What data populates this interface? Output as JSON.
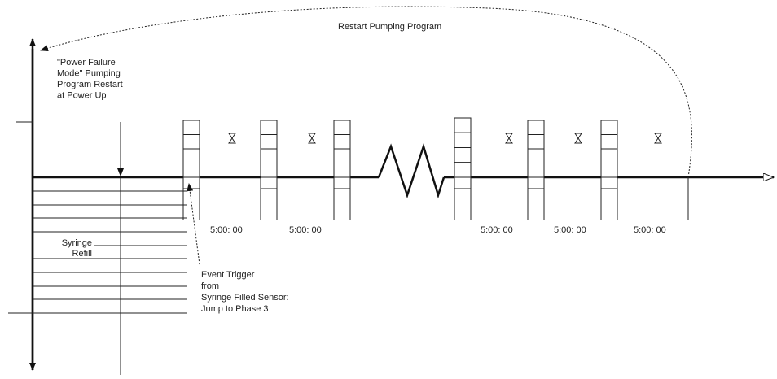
{
  "labels": {
    "restart": "Restart Pumping Program",
    "power_failure": [
      "\"Power Failure",
      "Mode\" Pumping",
      "Program Restart",
      "at Power Up"
    ],
    "refill": [
      "Syringe",
      "Refill"
    ],
    "event": [
      "Event Trigger",
      "from",
      "Syringe Filled Sensor:",
      "Jump to Phase 3"
    ],
    "times": [
      "5:00: 00",
      "5:00: 00",
      "5:00: 00",
      "5:00: 00",
      "5:00: 00"
    ]
  }
}
